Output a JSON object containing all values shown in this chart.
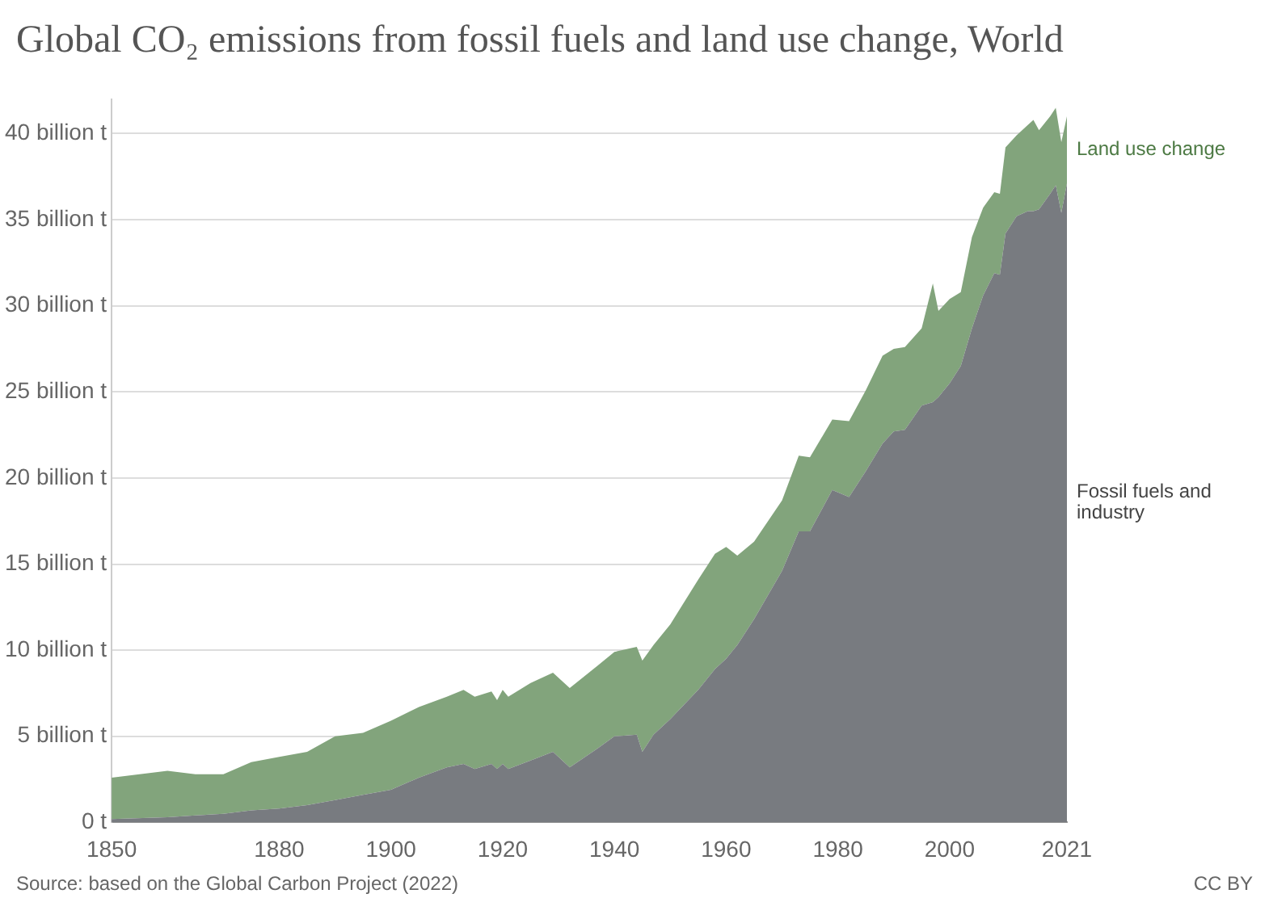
{
  "chart_data": {
    "type": "area",
    "stacked": true,
    "title": "Global CO₂ emissions from fossil fuels and land use change, World",
    "annotations": [
      "Source: based on the Global Carbon Project (2022)",
      "CC BY"
    ],
    "x": [
      1850,
      1860,
      1865,
      1870,
      1875,
      1880,
      1885,
      1890,
      1895,
      1900,
      1905,
      1910,
      1913,
      1915,
      1918,
      1919,
      1920,
      1921,
      1925,
      1929,
      1932,
      1937,
      1940,
      1944,
      1945,
      1947,
      1950,
      1955,
      1958,
      1960,
      1962,
      1965,
      1970,
      1973,
      1975,
      1979,
      1982,
      1985,
      1988,
      1990,
      1992,
      1995,
      1997,
      1998,
      2000,
      2002,
      2004,
      2006,
      2008,
      2009,
      2010,
      2012,
      2014,
      2015,
      2016,
      2018,
      2019,
      2020,
      2021
    ],
    "series": [
      {
        "name": "Fossil fuels and industry",
        "color": "#787b80",
        "values": [
          0.2,
          0.3,
          0.4,
          0.5,
          0.7,
          0.8,
          1.0,
          1.3,
          1.6,
          1.9,
          2.6,
          3.2,
          3.4,
          3.1,
          3.4,
          3.1,
          3.4,
          3.1,
          3.6,
          4.1,
          3.2,
          4.3,
          5.0,
          5.1,
          4.1,
          5.1,
          6.0,
          7.7,
          8.9,
          9.5,
          10.3,
          11.8,
          14.6,
          16.9,
          16.9,
          19.3,
          18.9,
          20.4,
          22.0,
          22.7,
          22.8,
          24.2,
          24.4,
          24.7,
          25.5,
          26.5,
          28.7,
          30.6,
          31.9,
          31.8,
          34.2,
          35.2,
          35.5,
          35.5,
          35.6,
          36.5,
          37.0,
          35.4,
          37.1
        ]
      },
      {
        "name": "Land use change",
        "color": "#82a47c",
        "values": [
          2.4,
          2.7,
          2.4,
          2.3,
          2.8,
          3.0,
          3.1,
          3.7,
          3.6,
          4.0,
          4.1,
          4.1,
          4.3,
          4.2,
          4.2,
          4.0,
          4.3,
          4.2,
          4.5,
          4.6,
          4.6,
          4.8,
          4.9,
          5.1,
          5.3,
          5.2,
          5.5,
          6.4,
          6.7,
          6.5,
          5.2,
          4.5,
          4.1,
          4.4,
          4.3,
          4.1,
          4.4,
          4.7,
          5.1,
          4.8,
          4.8,
          4.5,
          6.9,
          5.0,
          4.9,
          4.3,
          5.3,
          5.1,
          4.7,
          4.7,
          5.0,
          4.7,
          5.0,
          5.3,
          4.6,
          4.5,
          4.5,
          4.1,
          3.9
        ]
      }
    ],
    "xlim": [
      1850,
      2021
    ],
    "xticks": [
      1850,
      1880,
      1900,
      1920,
      1940,
      1960,
      1980,
      2000,
      2021
    ],
    "ylim": [
      0,
      42
    ],
    "yticks": [
      {
        "value": 0,
        "label": "0 t"
      },
      {
        "value": 5,
        "label": "5 billion t"
      },
      {
        "value": 10,
        "label": "10 billion t"
      },
      {
        "value": 15,
        "label": "15 billion t"
      },
      {
        "value": 20,
        "label": "20 billion t"
      },
      {
        "value": 25,
        "label": "25 billion t"
      },
      {
        "value": 30,
        "label": "30 billion t"
      },
      {
        "value": 35,
        "label": "35 billion t"
      },
      {
        "value": 40,
        "label": "40 billion t"
      }
    ],
    "grid": "y"
  }
}
